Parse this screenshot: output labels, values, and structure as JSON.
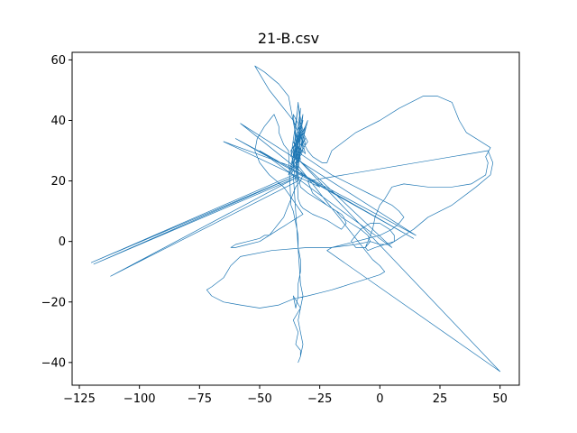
{
  "chart_data": {
    "type": "line",
    "title": "21-B.csv",
    "xlabel": "",
    "ylabel": "",
    "xlim": [
      -128,
      58
    ],
    "ylim": [
      -47.5,
      62.5
    ],
    "xticks": [
      -125,
      -100,
      -75,
      -50,
      -25,
      0,
      25,
      50
    ],
    "yticks": [
      -40,
      -20,
      0,
      20,
      40,
      60
    ],
    "xtick_labels": [
      "−125",
      "−100",
      "−75",
      "−50",
      "−25",
      "0",
      "25",
      "50"
    ],
    "ytick_labels": [
      "−40",
      "−20",
      "0",
      "20",
      "40",
      "60"
    ],
    "grid": false,
    "series": [
      {
        "color": "#1f77b4",
        "x": [
          -35,
          -33,
          -36,
          -32,
          -37,
          -34,
          -31,
          -38,
          -33,
          -35,
          -30,
          -36,
          -34,
          -32,
          -37,
          -35,
          -33,
          -36,
          -31,
          -34,
          -38,
          -42,
          -48,
          -52,
          -46,
          -40,
          -36,
          -34,
          -32,
          -30,
          -28,
          -26,
          -24,
          -22,
          -20,
          -10,
          0,
          8,
          18,
          24,
          30,
          33,
          36,
          40,
          44,
          46,
          44,
          45,
          44,
          38,
          30,
          20,
          10,
          5,
          2,
          0,
          -2,
          -3,
          -5,
          -6,
          -5,
          -2,
          2,
          6,
          10,
          14,
          20,
          30,
          40,
          46,
          47,
          45,
          -30,
          -28,
          -22,
          -18,
          -16,
          -12,
          -8,
          -5,
          -4,
          -6,
          -10,
          -12,
          -10,
          -8,
          -4,
          0,
          4,
          6,
          6,
          4,
          0,
          -4,
          -10,
          -20,
          -30,
          -45,
          -58,
          -62,
          -65,
          -70,
          -72,
          -70,
          -65,
          -58,
          -50,
          -42,
          -36,
          -30,
          -25,
          -20,
          -16,
          -12,
          -8,
          -4,
          0,
          2,
          0,
          -3,
          -35,
          -34,
          -32,
          -33,
          -35,
          -36,
          -37,
          -38,
          -39,
          -40,
          -42,
          -44,
          -46,
          -50,
          -55,
          -60,
          -62,
          -60,
          -55,
          -50,
          -48,
          -46,
          -44,
          -42,
          -40,
          -38,
          -36,
          -34,
          -32,
          -40,
          -46,
          -50,
          -52,
          -51,
          -48,
          -46,
          -45,
          -44,
          -43,
          -42,
          -42,
          -41,
          -40,
          -38,
          -37,
          -36,
          -35,
          -34,
          -34,
          -33,
          -33,
          -34,
          -34,
          -35,
          -36,
          -33,
          -36,
          -34,
          -35,
          -33,
          -33,
          -34,
          -33,
          -32,
          -33,
          -34,
          -33,
          -32,
          -33,
          -36,
          -120,
          -34,
          -119,
          -35,
          -112,
          -34,
          -34,
          -65,
          -25,
          -58,
          15,
          -60,
          14,
          -50,
          5,
          -35,
          50,
          -22,
          -20,
          -10,
          0,
          5,
          8,
          10,
          8,
          5,
          0,
          -5,
          -10,
          -15,
          -20,
          -35,
          -36,
          -34,
          -33,
          -30,
          -28,
          -26,
          -24,
          -22,
          -20,
          -18,
          -16,
          -15,
          -14,
          -16,
          -18,
          -20,
          -22,
          -25,
          -28,
          -30,
          -32,
          -33,
          -34,
          -35,
          -33,
          -36,
          -32,
          -34,
          -31,
          -37,
          -33,
          -35,
          -30,
          -36,
          -34,
          -32,
          -37,
          -35,
          -33,
          -36,
          -31,
          -34,
          -35
        ],
        "y": [
          30,
          35,
          25,
          40,
          28,
          45,
          32,
          22,
          38,
          27,
          33,
          42,
          24,
          36,
          30,
          20,
          44,
          26,
          34,
          31,
          48,
          52,
          56,
          58,
          50,
          44,
          40,
          36,
          33,
          30,
          28,
          27,
          26,
          26,
          30,
          36,
          40,
          44,
          48,
          48,
          46,
          40,
          36,
          34,
          32,
          31,
          28,
          26,
          22,
          19,
          18,
          18,
          19,
          18,
          14,
          12,
          8,
          4,
          0,
          -2,
          -3,
          -2,
          -1,
          0,
          2,
          4,
          8,
          12,
          18,
          22,
          26,
          30,
          20,
          16,
          12,
          10,
          8,
          6,
          4,
          2,
          0,
          -2,
          -2,
          0,
          2,
          4,
          6,
          6,
          4,
          2,
          0,
          -1,
          -1,
          0,
          -1,
          -2,
          -2,
          -3,
          -5,
          -8,
          -12,
          -15,
          -16,
          -18,
          -20,
          -21,
          -22,
          -21,
          -19,
          -18,
          -17,
          -16,
          -15,
          -14,
          -13,
          -12,
          -11,
          -10,
          -8,
          -6,
          26,
          24,
          22,
          20,
          18,
          16,
          14,
          12,
          10,
          8,
          6,
          4,
          2,
          0,
          -1,
          -2,
          -2,
          -1,
          0,
          1,
          2,
          2,
          3,
          4,
          5,
          6,
          7,
          8,
          9,
          18,
          22,
          26,
          30,
          34,
          38,
          40,
          41,
          42,
          40,
          38,
          36,
          34,
          32,
          30,
          12,
          10,
          6,
          2,
          -2,
          -6,
          -10,
          -14,
          -18,
          -22,
          -18,
          -22,
          -26,
          -30,
          -34,
          -36,
          -38,
          -40,
          -38,
          -34,
          -30,
          -26,
          -22,
          -18,
          -14,
          22,
          -7,
          22,
          -7.5,
          21,
          -11.5,
          20,
          24,
          33,
          18,
          39,
          2,
          34,
          1,
          30,
          -2,
          28,
          -43,
          -3,
          -2,
          0,
          2,
          4,
          6,
          8,
          10,
          12,
          14,
          16,
          18,
          20,
          22,
          30,
          26,
          22,
          18,
          16,
          15,
          14,
          13,
          12,
          11,
          10,
          9,
          8,
          6,
          4,
          5,
          6,
          7,
          8,
          9,
          10,
          11,
          12,
          14,
          32,
          36,
          28,
          42,
          26,
          38,
          30,
          34,
          24,
          40,
          28,
          46,
          30,
          22,
          36,
          27,
          33,
          29,
          38,
          31
        ]
      }
    ]
  }
}
